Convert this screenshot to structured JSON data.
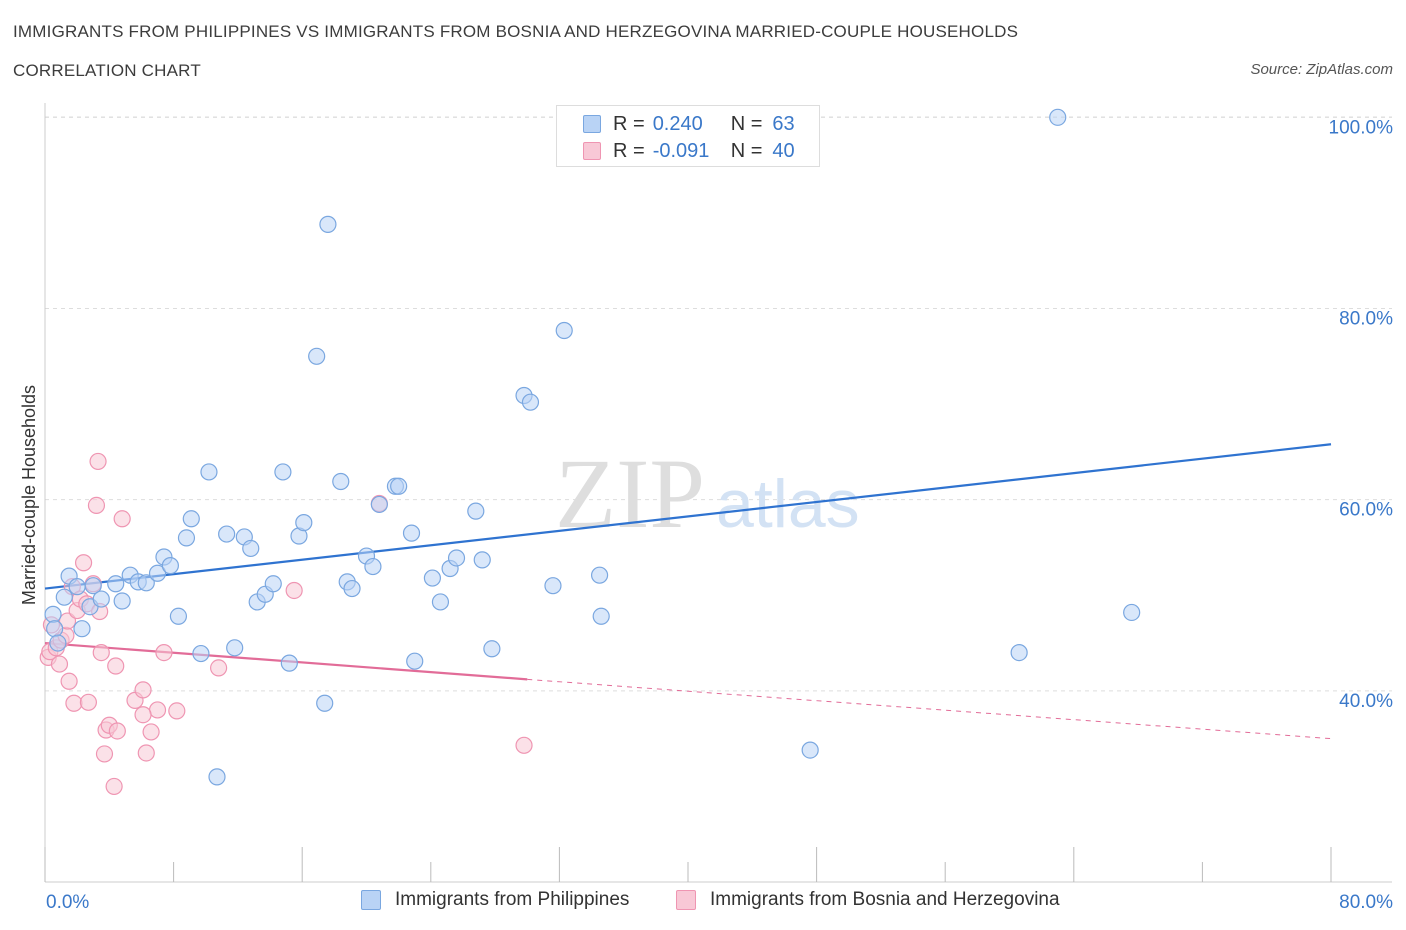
{
  "header": {
    "title": "IMMIGRANTS FROM PHILIPPINES VS IMMIGRANTS FROM BOSNIA AND HERZEGOVINA MARRIED-COUPLE HOUSEHOLDS",
    "subtitle": "CORRELATION CHART",
    "source": "Source: ZipAtlas.com"
  },
  "watermark": {
    "zip": "ZIP",
    "atlas": "atlas"
  },
  "legend": {
    "r_label": "R =",
    "n_label": "N =",
    "series1": {
      "r": "0.240",
      "n": "63"
    },
    "series2": {
      "r": "-0.091",
      "n": "40"
    }
  },
  "colors": {
    "series1_fill": "#b9d3f5",
    "series1_stroke": "#7aa7e0",
    "series1_line": "#2f73d0",
    "series2_fill": "#f8c8d6",
    "series2_stroke": "#ef95b2",
    "series2_line": "#e26c98",
    "axis_label": "#3a78c9",
    "grid": "#dddddd"
  },
  "chart_data": {
    "type": "scatter",
    "title": "IMMIGRANTS FROM PHILIPPINES VS IMMIGRANTS FROM BOSNIA AND HERZEGOVINA MARRIED-COUPLE HOUSEHOLDS",
    "xlabel": "",
    "ylabel": "Married-couple Households",
    "xlim": [
      0,
      80
    ],
    "ylim": [
      20,
      101.5
    ],
    "x_tick_labels": [
      "0.0%",
      "80.0%"
    ],
    "y_ticks": [
      40,
      60,
      80,
      100
    ],
    "y_tick_labels": [
      "40.0%",
      "60.0%",
      "80.0%",
      "100.0%"
    ],
    "grid": true,
    "legend_position": "top-center",
    "series": [
      {
        "name": "Immigrants from Philippines",
        "r": 0.24,
        "n": 63,
        "trend": {
          "x": [
            0,
            80
          ],
          "y": [
            50.7,
            65.8
          ]
        },
        "points": [
          [
            0.5,
            48.0
          ],
          [
            0.6,
            46.5
          ],
          [
            0.8,
            45.0
          ],
          [
            1.2,
            49.8
          ],
          [
            1.5,
            52.0
          ],
          [
            2.0,
            50.9
          ],
          [
            2.3,
            46.5
          ],
          [
            2.8,
            48.8
          ],
          [
            3.0,
            51.0
          ],
          [
            3.5,
            49.6
          ],
          [
            4.4,
            51.2
          ],
          [
            4.8,
            49.4
          ],
          [
            5.3,
            52.1
          ],
          [
            5.8,
            51.4
          ],
          [
            6.3,
            51.3
          ],
          [
            7.0,
            52.3
          ],
          [
            7.4,
            54.0
          ],
          [
            7.8,
            53.1
          ],
          [
            8.3,
            47.8
          ],
          [
            8.8,
            56.0
          ],
          [
            9.1,
            58.0
          ],
          [
            9.7,
            43.9
          ],
          [
            10.2,
            62.9
          ],
          [
            10.7,
            31.0
          ],
          [
            11.3,
            56.4
          ],
          [
            11.8,
            44.5
          ],
          [
            12.4,
            56.1
          ],
          [
            12.8,
            54.9
          ],
          [
            13.2,
            49.3
          ],
          [
            13.7,
            50.1
          ],
          [
            14.2,
            51.2
          ],
          [
            14.8,
            62.9
          ],
          [
            15.2,
            42.9
          ],
          [
            15.8,
            56.2
          ],
          [
            16.1,
            57.6
          ],
          [
            16.9,
            75.0
          ],
          [
            17.4,
            38.7
          ],
          [
            17.6,
            88.8
          ],
          [
            18.4,
            61.9
          ],
          [
            18.8,
            51.4
          ],
          [
            19.1,
            50.7
          ],
          [
            20.0,
            54.1
          ],
          [
            20.4,
            53.0
          ],
          [
            20.8,
            59.5
          ],
          [
            21.8,
            61.4
          ],
          [
            22.0,
            61.4
          ],
          [
            22.8,
            56.5
          ],
          [
            23.0,
            43.1
          ],
          [
            24.1,
            51.8
          ],
          [
            24.6,
            49.3
          ],
          [
            25.2,
            52.8
          ],
          [
            25.6,
            53.9
          ],
          [
            26.8,
            58.8
          ],
          [
            27.2,
            53.7
          ],
          [
            27.8,
            44.4
          ],
          [
            29.8,
            70.9
          ],
          [
            30.2,
            70.2
          ],
          [
            31.6,
            51.0
          ],
          [
            32.3,
            77.7
          ],
          [
            34.5,
            52.1
          ],
          [
            34.6,
            47.8
          ],
          [
            47.6,
            33.8
          ],
          [
            60.6,
            44.0
          ],
          [
            63.0,
            100.0
          ],
          [
            67.6,
            48.2
          ]
        ]
      },
      {
        "name": "Immigrants from Bosnia and Herzegovina",
        "r": -0.091,
        "n": 40,
        "trend": {
          "x": [
            0,
            30
          ],
          "y": [
            45.0,
            41.2
          ]
        },
        "trend_extension": {
          "x": [
            30,
            80
          ],
          "y": [
            41.2,
            35.0
          ]
        },
        "points": [
          [
            0.2,
            43.5
          ],
          [
            0.3,
            44.1
          ],
          [
            0.4,
            46.9
          ],
          [
            0.7,
            44.5
          ],
          [
            1.0,
            45.3
          ],
          [
            1.3,
            45.8
          ],
          [
            1.4,
            47.3
          ],
          [
            1.5,
            41.0
          ],
          [
            1.7,
            50.9
          ],
          [
            1.8,
            38.7
          ],
          [
            2.0,
            48.4
          ],
          [
            2.2,
            49.6
          ],
          [
            2.4,
            53.4
          ],
          [
            2.6,
            49.1
          ],
          [
            2.7,
            38.8
          ],
          [
            3.0,
            51.2
          ],
          [
            3.2,
            59.4
          ],
          [
            3.3,
            64.0
          ],
          [
            3.4,
            48.3
          ],
          [
            3.5,
            44.0
          ],
          [
            3.7,
            33.4
          ],
          [
            3.8,
            35.9
          ],
          [
            4.0,
            36.4
          ],
          [
            4.4,
            42.6
          ],
          [
            4.5,
            35.8
          ],
          [
            4.8,
            58.0
          ],
          [
            5.6,
            39.0
          ],
          [
            6.1,
            40.1
          ],
          [
            6.3,
            33.5
          ],
          [
            6.6,
            35.7
          ],
          [
            7.0,
            38.0
          ],
          [
            7.4,
            44.0
          ],
          [
            8.2,
            37.9
          ],
          [
            10.8,
            42.4
          ],
          [
            15.5,
            50.5
          ],
          [
            20.8,
            59.6
          ],
          [
            29.8,
            34.3
          ],
          [
            0.9,
            42.8
          ],
          [
            4.3,
            30.0
          ],
          [
            6.1,
            37.5
          ]
        ]
      }
    ]
  },
  "bottom_legend": {
    "series1": "Immigrants from Philippines",
    "series2": "Immigrants from Bosnia and Herzegovina"
  }
}
